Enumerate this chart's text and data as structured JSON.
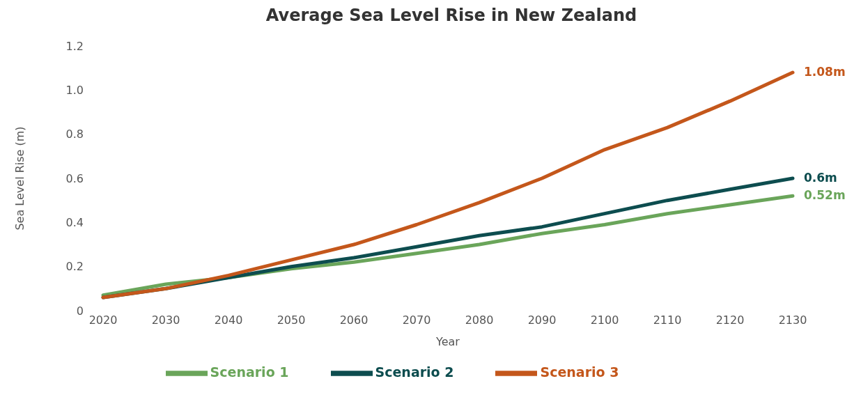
{
  "chart_data": {
    "type": "line",
    "title": "Average Sea Level Rise in New Zealand",
    "xlabel": "Year",
    "ylabel": "Sea Level Rise (m)",
    "categories": [
      "2020",
      "2030",
      "2040",
      "2050",
      "2060",
      "2070",
      "2080",
      "2090",
      "2100",
      "2110",
      "2120",
      "2130"
    ],
    "series": [
      {
        "name": "Scenario 1",
        "color": "#6aa55a",
        "values": [
          0.07,
          0.12,
          0.15,
          0.19,
          0.22,
          0.26,
          0.3,
          0.35,
          0.39,
          0.44,
          0.48,
          0.52
        ],
        "value_labels": [
          null,
          null,
          null,
          null,
          null,
          null,
          null,
          null,
          null,
          null,
          null,
          "0.52m"
        ]
      },
      {
        "name": "Scenario 2",
        "color": "#0d4d4f",
        "values": [
          0.06,
          0.1,
          0.15,
          0.2,
          0.24,
          0.29,
          0.34,
          0.38,
          0.44,
          0.5,
          0.55,
          0.6
        ],
        "value_labels": [
          null,
          null,
          null,
          null,
          null,
          null,
          null,
          null,
          null,
          null,
          null,
          "0.6m"
        ]
      },
      {
        "name": "Scenario 3",
        "color": "#c4571b",
        "values": [
          0.06,
          0.1,
          0.16,
          0.23,
          0.3,
          0.39,
          0.49,
          0.6,
          0.73,
          0.83,
          0.95,
          1.08
        ],
        "value_labels": [
          null,
          null,
          null,
          null,
          null,
          null,
          null,
          null,
          null,
          null,
          null,
          "1.08m"
        ]
      }
    ],
    "ylim": [
      0,
      1.2
    ],
    "yticks": [
      0,
      0.2,
      0.4,
      0.6,
      0.8,
      {
        "value": 1,
        "label": "1.0"
      },
      1.2
    ],
    "grid": false,
    "legend": "bottom",
    "marker": "none",
    "line_style": "solid"
  }
}
